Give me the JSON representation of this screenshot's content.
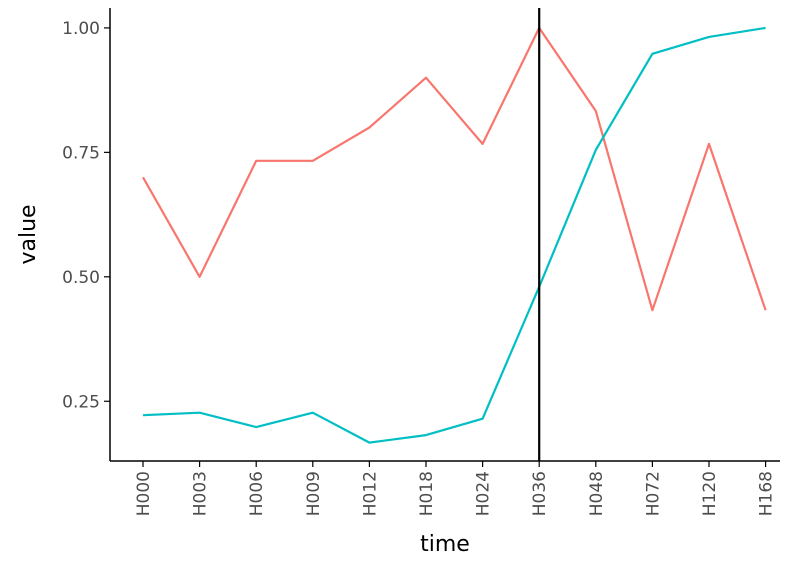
{
  "chart_data": {
    "type": "line",
    "xlabel": "time",
    "ylabel": "value",
    "categories": [
      "H000",
      "H003",
      "H006",
      "H009",
      "H012",
      "H018",
      "H024",
      "H036",
      "H048",
      "H072",
      "H120",
      "H168"
    ],
    "yticks": [
      "0.25",
      "0.50",
      "0.75",
      "1.00"
    ],
    "ylim": [
      0.13,
      1.04
    ],
    "series": [
      {
        "color": "#F8766D",
        "values": [
          0.7,
          0.5,
          0.733,
          0.733,
          0.8,
          0.9,
          0.767,
          1.0,
          0.833,
          0.433,
          0.767,
          0.433
        ]
      },
      {
        "color": "#00BFC4",
        "values": [
          0.222,
          0.227,
          0.198,
          0.227,
          0.167,
          0.182,
          0.215,
          0.48,
          0.755,
          0.948,
          0.982,
          1.0
        ]
      }
    ],
    "vline": {
      "category": "H036",
      "color": "#000000"
    },
    "grid": false,
    "legend": "none"
  }
}
